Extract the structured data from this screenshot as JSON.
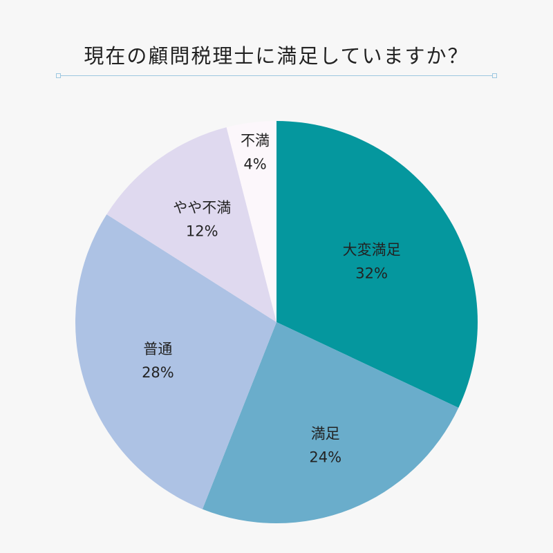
{
  "chart_data": {
    "type": "pie",
    "title": "現在の顧問税理士に満足していますか？",
    "slices": [
      {
        "label": "大変満足",
        "value": 32,
        "value_label": "32%",
        "color": "#05979e"
      },
      {
        "label": "満足",
        "value": 24,
        "value_label": "24%",
        "color": "#6aadcb"
      },
      {
        "label": "普通",
        "value": 28,
        "value_label": "28%",
        "color": "#adc2e4"
      },
      {
        "label": "やや不満",
        "value": 12,
        "value_label": "12%",
        "color": "#dfd9ef"
      },
      {
        "label": "不満",
        "value": 4,
        "value_label": "4%",
        "color": "#fcf7fb"
      }
    ],
    "start_angle": "12 o'clock",
    "direction": "clockwise",
    "legend": "none"
  }
}
